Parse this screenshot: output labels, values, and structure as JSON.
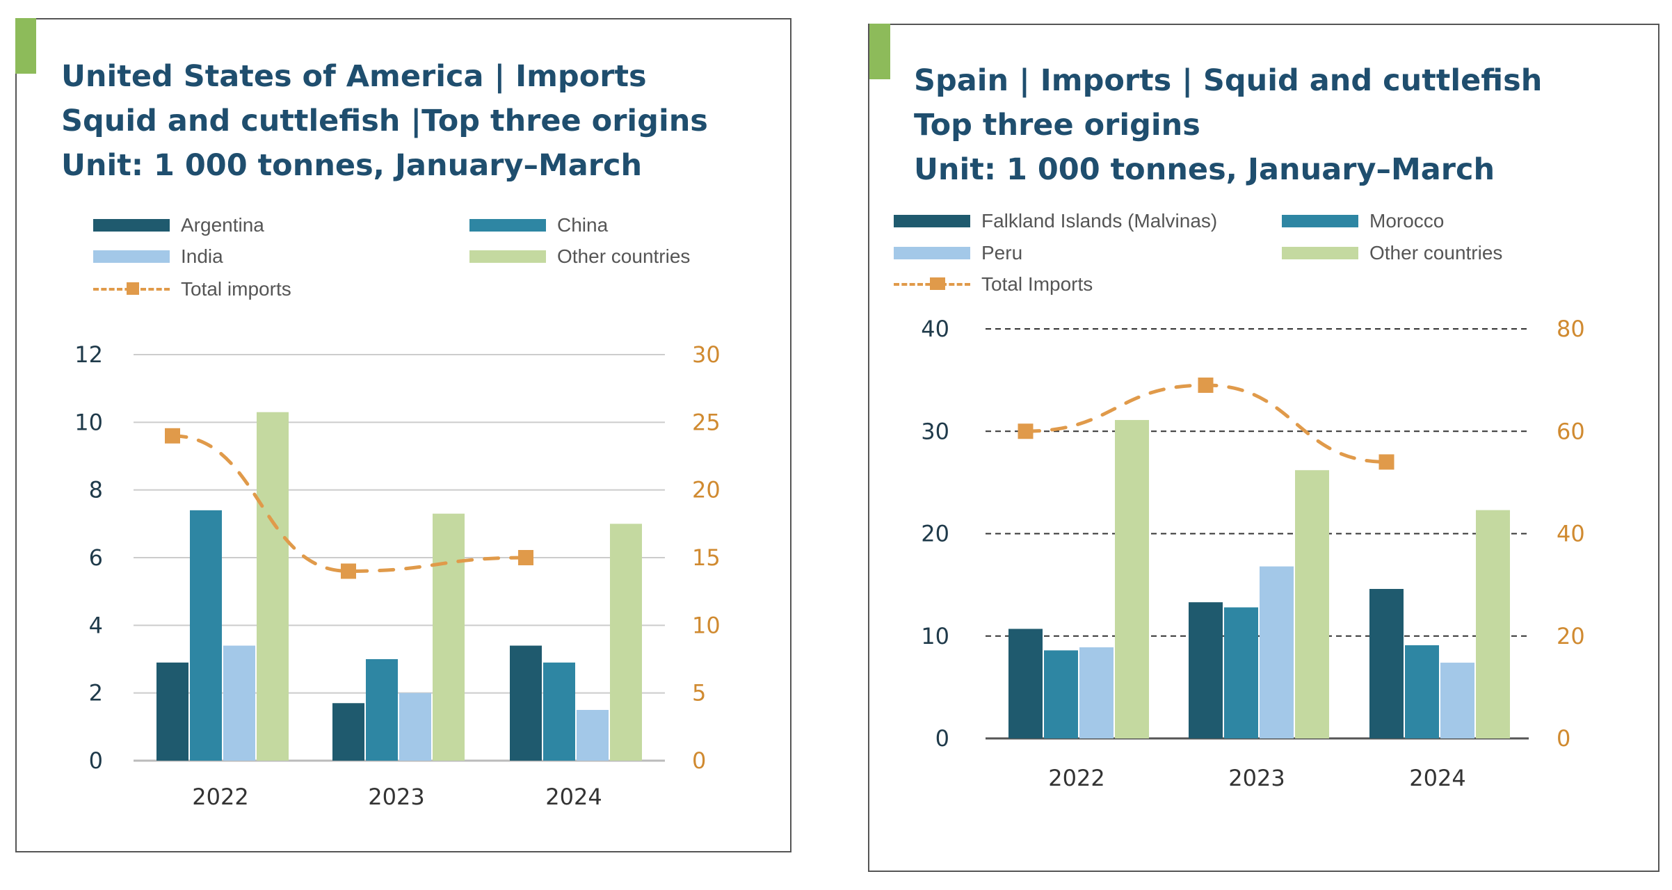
{
  "chart_data": [
    {
      "type": "bar",
      "title_lines": [
        "United States of America | Imports",
        "Squid and cuttlefish |Top three origins",
        "Unit: 1 000 tonnes, January–March"
      ],
      "categories": [
        "2022",
        "2023",
        "2024"
      ],
      "series": [
        {
          "name": "Argentina",
          "color": "#1f5a6e",
          "values": [
            2.9,
            1.7,
            3.4
          ]
        },
        {
          "name": "China",
          "color": "#2e86a3",
          "values": [
            7.4,
            3.0,
            2.9
          ]
        },
        {
          "name": "India",
          "color": "#a3c8e8",
          "values": [
            3.4,
            2.0,
            1.5
          ]
        },
        {
          "name": "Other countries",
          "color": "#c4d9a0",
          "values": [
            10.3,
            7.3,
            7.0
          ]
        }
      ],
      "line_series": {
        "name": "Total imports",
        "color": "#e09a4a",
        "axis": "right",
        "style": "dashed",
        "values": [
          24,
          14,
          15
        ]
      },
      "ylim": [
        0,
        12
      ],
      "yticks": [
        "0",
        "2",
        "4",
        "6",
        "8",
        "10",
        "12"
      ],
      "y2lim": [
        0,
        30
      ],
      "y2ticks": [
        "0",
        "5",
        "10",
        "15",
        "20",
        "25",
        "30"
      ],
      "grid": "solid",
      "legend": "top"
    },
    {
      "type": "bar",
      "title_lines": [
        "Spain | Imports | Squid and cuttlefish",
        "Top three origins",
        "Unit: 1 000 tonnes, January–March"
      ],
      "categories": [
        "2022",
        "2023",
        "2024"
      ],
      "series": [
        {
          "name": "Falkland Islands (Malvinas)",
          "color": "#1f5a6e",
          "values": [
            10.7,
            13.3,
            14.6
          ]
        },
        {
          "name": "Morocco",
          "color": "#2e86a3",
          "values": [
            8.6,
            12.8,
            9.1
          ]
        },
        {
          "name": "Peru",
          "color": "#a3c8e8",
          "values": [
            8.9,
            16.8,
            7.4
          ]
        },
        {
          "name": "Other countries",
          "color": "#c4d9a0",
          "values": [
            31.1,
            26.2,
            22.3
          ]
        }
      ],
      "line_series": {
        "name": "Total Imports",
        "color": "#e09a4a",
        "axis": "right",
        "style": "dashed",
        "values": [
          60,
          69,
          54
        ]
      },
      "ylim": [
        0,
        40
      ],
      "yticks": [
        "0",
        "10",
        "20",
        "30",
        "40"
      ],
      "y2lim": [
        0,
        80
      ],
      "y2ticks": [
        "0",
        "20",
        "40",
        "60",
        "80"
      ],
      "grid": "dashed",
      "legend": "top"
    }
  ]
}
